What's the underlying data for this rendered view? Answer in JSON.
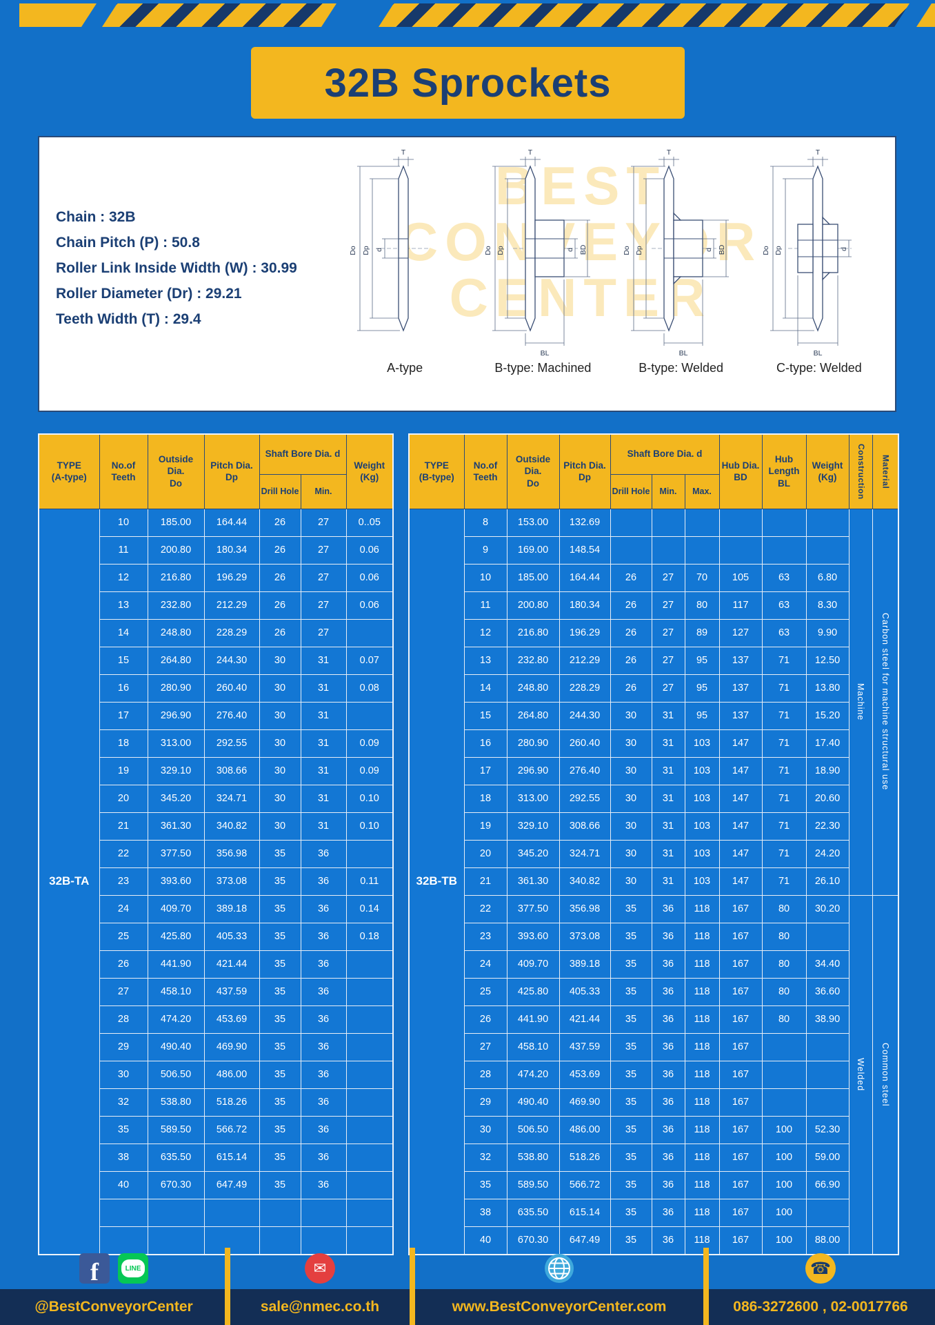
{
  "title": "32B Sprockets",
  "specs": [
    "Chain : 32B",
    "Chain Pitch (P) : 50.8",
    "Roller Link Inside Width (W) : 30.99",
    "Roller Diameter (Dr) : 29.21",
    "Teeth Width (T) : 29.4"
  ],
  "watermark": [
    "BEST",
    "CONVEYOR",
    "CENTER"
  ],
  "diagrams": {
    "captions": [
      "A-type",
      "B-type: Machined",
      "B-type: Welded",
      "C-type: Welded"
    ],
    "dims": {
      "t": "T",
      "outside": "Do",
      "pitch": "Dp",
      "bore": "d",
      "hub_dia": "BD",
      "hub_len": "BL"
    }
  },
  "table_a": {
    "header": {
      "type": "TYPE\n(A-type)",
      "teeth": "No.of\nTeeth",
      "outside": "Outside\nDia.\nDo",
      "pitch": "Pitch Dia.\nDp",
      "shaft": "Shaft Bore Dia. d",
      "drill": "Drill Hole",
      "min": "Min.",
      "weight": "Weight\n(Kg)"
    },
    "type_value": "32B-TA",
    "rows": [
      [
        "10",
        "185.00",
        "164.44",
        "26",
        "27",
        "0..05"
      ],
      [
        "11",
        "200.80",
        "180.34",
        "26",
        "27",
        "0.06"
      ],
      [
        "12",
        "216.80",
        "196.29",
        "26",
        "27",
        "0.06"
      ],
      [
        "13",
        "232.80",
        "212.29",
        "26",
        "27",
        "0.06"
      ],
      [
        "14",
        "248.80",
        "228.29",
        "26",
        "27",
        ""
      ],
      [
        "15",
        "264.80",
        "244.30",
        "30",
        "31",
        "0.07"
      ],
      [
        "16",
        "280.90",
        "260.40",
        "30",
        "31",
        "0.08"
      ],
      [
        "17",
        "296.90",
        "276.40",
        "30",
        "31",
        ""
      ],
      [
        "18",
        "313.00",
        "292.55",
        "30",
        "31",
        "0.09"
      ],
      [
        "19",
        "329.10",
        "308.66",
        "30",
        "31",
        "0.09"
      ],
      [
        "20",
        "345.20",
        "324.71",
        "30",
        "31",
        "0.10"
      ],
      [
        "21",
        "361.30",
        "340.82",
        "30",
        "31",
        "0.10"
      ],
      [
        "22",
        "377.50",
        "356.98",
        "35",
        "36",
        ""
      ],
      [
        "23",
        "393.60",
        "373.08",
        "35",
        "36",
        "0.11"
      ],
      [
        "24",
        "409.70",
        "389.18",
        "35",
        "36",
        "0.14"
      ],
      [
        "25",
        "425.80",
        "405.33",
        "35",
        "36",
        "0.18"
      ],
      [
        "26",
        "441.90",
        "421.44",
        "35",
        "36",
        ""
      ],
      [
        "27",
        "458.10",
        "437.59",
        "35",
        "36",
        ""
      ],
      [
        "28",
        "474.20",
        "453.69",
        "35",
        "36",
        ""
      ],
      [
        "29",
        "490.40",
        "469.90",
        "35",
        "36",
        ""
      ],
      [
        "30",
        "506.50",
        "486.00",
        "35",
        "36",
        ""
      ],
      [
        "32",
        "538.80",
        "518.26",
        "35",
        "36",
        ""
      ],
      [
        "35",
        "589.50",
        "566.72",
        "35",
        "36",
        ""
      ],
      [
        "38",
        "635.50",
        "615.14",
        "35",
        "36",
        ""
      ],
      [
        "40",
        "670.30",
        "647.49",
        "35",
        "36",
        ""
      ],
      [
        "",
        "",
        "",
        "",
        "",
        ""
      ],
      [
        "",
        "",
        "",
        "",
        "",
        ""
      ]
    ]
  },
  "table_b": {
    "header": {
      "type": "TYPE\n(B-type)",
      "teeth": "No.of\nTeeth",
      "outside": "Outside\nDia.\nDo",
      "pitch": "Pitch Dia.\nDp",
      "shaft": "Shaft Bore Dia. d",
      "drill": "Drill Hole",
      "min": "Min.",
      "max": "Max.",
      "hub_dia": "Hub Dia.\nBD",
      "hub_len": "Hub\nLength\nBL",
      "weight": "Weight\n(Kg)",
      "construction": "Construction",
      "material": "Material"
    },
    "type_value": "32B-TB",
    "construction_groups": [
      {
        "label": "Machine",
        "span": 14
      },
      {
        "label": "Welded",
        "span": 13
      }
    ],
    "material_groups": [
      {
        "label": "Carbon steel for machine structural use",
        "span": 14
      },
      {
        "label": "Common steel",
        "span": 13
      }
    ],
    "rows": [
      [
        "8",
        "153.00",
        "132.69",
        "",
        "",
        "",
        "",
        "",
        ""
      ],
      [
        "9",
        "169.00",
        "148.54",
        "",
        "",
        "",
        "",
        "",
        ""
      ],
      [
        "10",
        "185.00",
        "164.44",
        "26",
        "27",
        "70",
        "105",
        "63",
        "6.80"
      ],
      [
        "11",
        "200.80",
        "180.34",
        "26",
        "27",
        "80",
        "117",
        "63",
        "8.30"
      ],
      [
        "12",
        "216.80",
        "196.29",
        "26",
        "27",
        "89",
        "127",
        "63",
        "9.90"
      ],
      [
        "13",
        "232.80",
        "212.29",
        "26",
        "27",
        "95",
        "137",
        "71",
        "12.50"
      ],
      [
        "14",
        "248.80",
        "228.29",
        "26",
        "27",
        "95",
        "137",
        "71",
        "13.80"
      ],
      [
        "15",
        "264.80",
        "244.30",
        "30",
        "31",
        "95",
        "137",
        "71",
        "15.20"
      ],
      [
        "16",
        "280.90",
        "260.40",
        "30",
        "31",
        "103",
        "147",
        "71",
        "17.40"
      ],
      [
        "17",
        "296.90",
        "276.40",
        "30",
        "31",
        "103",
        "147",
        "71",
        "18.90"
      ],
      [
        "18",
        "313.00",
        "292.55",
        "30",
        "31",
        "103",
        "147",
        "71",
        "20.60"
      ],
      [
        "19",
        "329.10",
        "308.66",
        "30",
        "31",
        "103",
        "147",
        "71",
        "22.30"
      ],
      [
        "20",
        "345.20",
        "324.71",
        "30",
        "31",
        "103",
        "147",
        "71",
        "24.20"
      ],
      [
        "21",
        "361.30",
        "340.82",
        "30",
        "31",
        "103",
        "147",
        "71",
        "26.10"
      ],
      [
        "22",
        "377.50",
        "356.98",
        "35",
        "36",
        "118",
        "167",
        "80",
        "30.20"
      ],
      [
        "23",
        "393.60",
        "373.08",
        "35",
        "36",
        "118",
        "167",
        "80",
        ""
      ],
      [
        "24",
        "409.70",
        "389.18",
        "35",
        "36",
        "118",
        "167",
        "80",
        "34.40"
      ],
      [
        "25",
        "425.80",
        "405.33",
        "35",
        "36",
        "118",
        "167",
        "80",
        "36.60"
      ],
      [
        "26",
        "441.90",
        "421.44",
        "35",
        "36",
        "118",
        "167",
        "80",
        "38.90"
      ],
      [
        "27",
        "458.10",
        "437.59",
        "35",
        "36",
        "118",
        "167",
        "",
        ""
      ],
      [
        "28",
        "474.20",
        "453.69",
        "35",
        "36",
        "118",
        "167",
        "",
        ""
      ],
      [
        "29",
        "490.40",
        "469.90",
        "35",
        "36",
        "118",
        "167",
        "",
        ""
      ],
      [
        "30",
        "506.50",
        "486.00",
        "35",
        "36",
        "118",
        "167",
        "100",
        "52.30"
      ],
      [
        "32",
        "538.80",
        "518.26",
        "35",
        "36",
        "118",
        "167",
        "100",
        "59.00"
      ],
      [
        "35",
        "589.50",
        "566.72",
        "35",
        "36",
        "118",
        "167",
        "100",
        "66.90"
      ],
      [
        "38",
        "635.50",
        "615.14",
        "35",
        "36",
        "118",
        "167",
        "100",
        ""
      ],
      [
        "40",
        "670.30",
        "647.49",
        "35",
        "36",
        "118",
        "167",
        "100",
        "88.00"
      ]
    ]
  },
  "footer": {
    "social": "@BestConveyorCenter",
    "email": "sale@nmec.co.th",
    "website": "www.BestConveyorCenter.com",
    "phone": "086-3272600 , 02-0017766",
    "icons": {
      "facebook": "f",
      "line": "LINE",
      "mail": "✉",
      "phone": "☎"
    }
  },
  "colors": {
    "background": "#1270c8",
    "accent_yellow": "#f3b71f",
    "navy": "#1b3f74",
    "table_cell_blue": "#1377d4",
    "footer_bar": "#132e55"
  }
}
